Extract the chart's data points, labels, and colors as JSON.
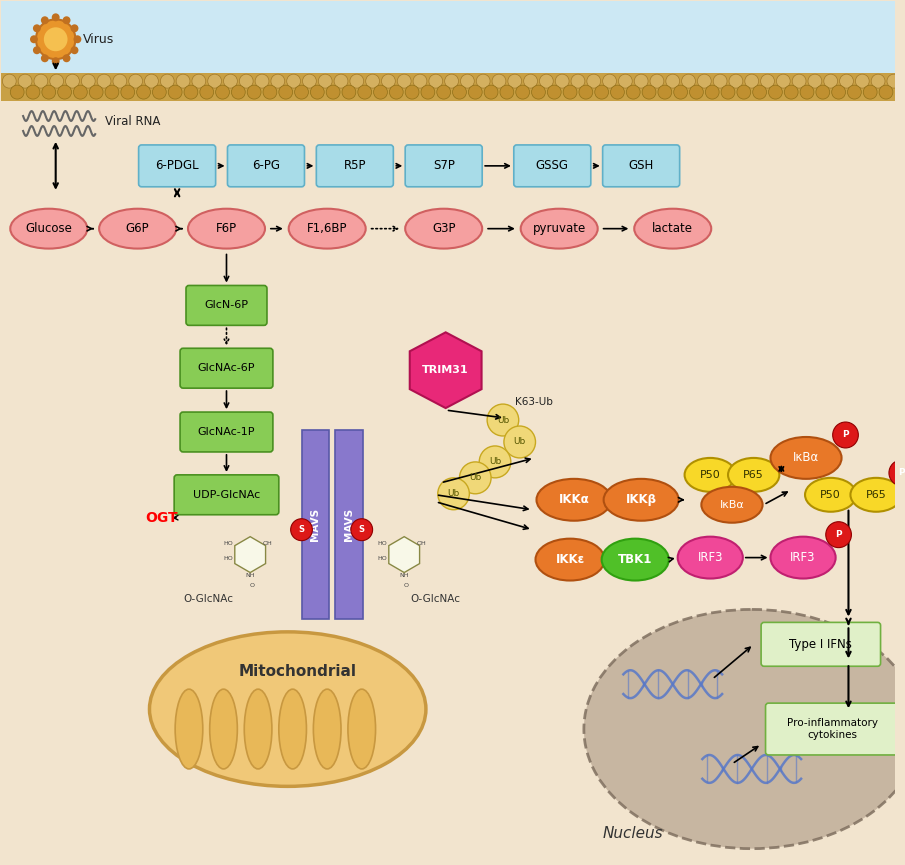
{
  "bg_color": "#f2e4ce",
  "sky_color": "#cce8f4",
  "membrane_color": "#c8a45a",
  "membrane_dot_color": "#b8903a",
  "virus_body_color": "#e8952a",
  "virus_inner_color": "#f5c050",
  "virus_spike_color": "#c07020",
  "rna_color": "#888888",
  "ppp_box_color": "#a8dce8",
  "ppp_box_border": "#60b0c8",
  "glyc_oval_color": "#f5a0a0",
  "glyc_oval_border": "#d06060",
  "green_box_color": "#88cc55",
  "green_box_border": "#4a9020",
  "mavs_color": "#8878cc",
  "mavs_border": "#5858a8",
  "trim31_color": "#e82878",
  "trim31_border": "#b01050",
  "ub_color": "#f0d878",
  "ub_border": "#c8a820",
  "ikka_color": "#e87828",
  "ikkb_color": "#e87828",
  "ikke_color": "#e87828",
  "tbk1_color": "#50c028",
  "tbk1_border": "#30a010",
  "irf3_color": "#f04898",
  "irf3_border": "#c02070",
  "ikba_color": "#e87828",
  "p50_color": "#f8d828",
  "p65_color": "#f8d828",
  "p_color": "#dd1818",
  "mito_color": "#f0c878",
  "mito_border": "#c89840",
  "mito_inner_color": "#e8b858",
  "nucleus_color": "#c0ae9a",
  "nucleus_border": "#807060",
  "dna_color": "#5878c8",
  "ifn_box_color": "#e0f0c8",
  "ifn_box_border": "#70b040",
  "ppp_labels": [
    "6-PDGL",
    "6-PG",
    "R5P",
    "S7P",
    "GSSG",
    "GSH"
  ],
  "glyc_labels": [
    "Glucose",
    "G6P",
    "F6P",
    "F1,6BP",
    "G3P",
    "pyruvate",
    "lactate"
  ],
  "green_labels": [
    "GlcN-6P",
    "GlcNAc-6P",
    "GlcNAc-1P",
    "UDP-GlcNAc"
  ]
}
